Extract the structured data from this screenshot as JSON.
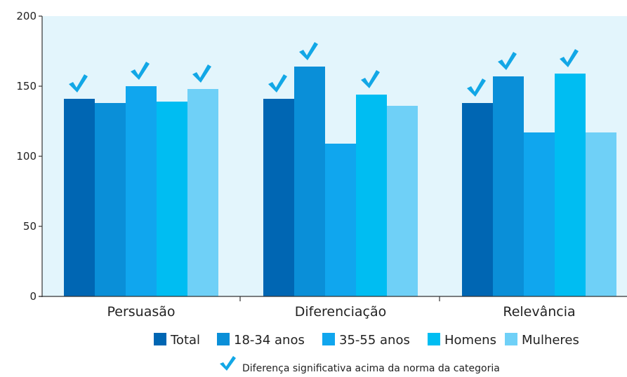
{
  "chart_data": {
    "type": "bar",
    "categories": [
      "Persuasão",
      "Diferenciação",
      "Relevância"
    ],
    "series": [
      {
        "name": "Total",
        "color": "#0066b3",
        "values": [
          141,
          141,
          138
        ],
        "significant": [
          true,
          true,
          true
        ]
      },
      {
        "name": "18-34 anos",
        "color": "#0a8fd8",
        "values": [
          138,
          164,
          157
        ],
        "significant": [
          false,
          true,
          true
        ]
      },
      {
        "name": "35-55 anos",
        "color": "#10a6ee",
        "values": [
          150,
          109,
          117
        ],
        "significant": [
          true,
          false,
          false
        ]
      },
      {
        "name": "Homens",
        "color": "#00bdf2",
        "values": [
          139,
          144,
          159
        ],
        "significant": [
          false,
          true,
          true
        ]
      },
      {
        "name": "Mulheres",
        "color": "#6fd0f7",
        "values": [
          148,
          136,
          117
        ],
        "significant": [
          true,
          false,
          false
        ]
      }
    ],
    "ylim": [
      0,
      200
    ],
    "yticks": [
      0,
      50,
      100,
      150,
      200
    ],
    "grid": false,
    "plot_background": "#e3f5fc",
    "check_color": "#12a7e6",
    "legend_position": "bottom",
    "note": "Diferença significativa acima da norma da categoria"
  }
}
